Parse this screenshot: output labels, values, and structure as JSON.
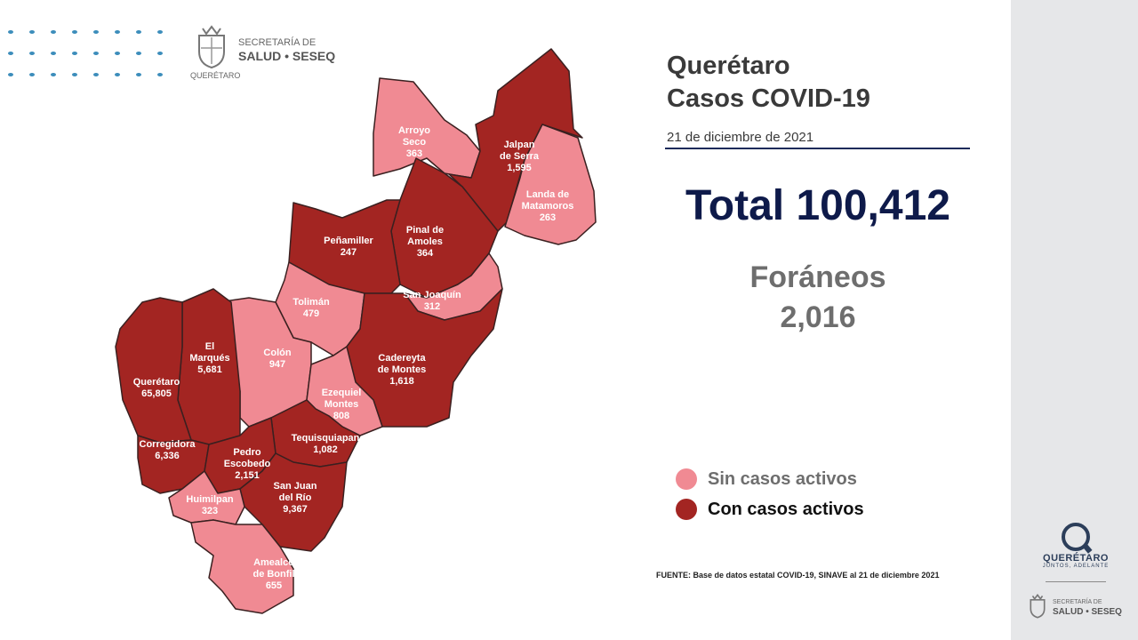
{
  "header": {
    "agency_line1": "SECRETARÍA DE",
    "agency_line2": "SALUD • SESEQ",
    "agency_line3": "QUERÉTARO"
  },
  "title": {
    "line1": "Querétaro",
    "line2": "Casos COVID-19"
  },
  "date": "21 de diciembre de 2021",
  "total_label": "Total 100,412",
  "foraneos": {
    "label": "Foráneos",
    "value": "2,016"
  },
  "legend": [
    {
      "label": "Sin casos activos",
      "color": "#f08a93",
      "text_color": "#6e6e6e"
    },
    {
      "label": "Con casos activos",
      "color": "#a32522",
      "text_color": "#111111"
    }
  ],
  "source": "FUENTE: Base de datos estatal  COVID-19,  SINAVE  al 21 de diciembre 2021",
  "colors": {
    "active": "#a32522",
    "inactive": "#f08a93",
    "border": "#3a2020"
  },
  "municipalities": [
    {
      "name": "Arroyo Seco",
      "lines": [
        "Arroyo",
        "Seco"
      ],
      "cases": "363",
      "status": "inactive"
    },
    {
      "name": "Jalpan de Serra",
      "lines": [
        "Jalpan",
        "de Serra"
      ],
      "cases": "1,595",
      "status": "active"
    },
    {
      "name": "Landa de Matamoros",
      "lines": [
        "Landa de",
        "Matamoros"
      ],
      "cases": "263",
      "status": "inactive"
    },
    {
      "name": "Pinal de Amoles",
      "lines": [
        "Pinal de",
        "Amoles"
      ],
      "cases": "364",
      "status": "active"
    },
    {
      "name": "Peñamiller",
      "lines": [
        "Peñamiller"
      ],
      "cases": "247",
      "status": "active"
    },
    {
      "name": "San Joaquín",
      "lines": [
        "San Joaquín"
      ],
      "cases": "312",
      "status": "inactive"
    },
    {
      "name": "Tolimán",
      "lines": [
        "Tolimán"
      ],
      "cases": "479",
      "status": "inactive"
    },
    {
      "name": "Cadereyta de Montes",
      "lines": [
        "Cadereyta",
        "de Montes"
      ],
      "cases": "1,618",
      "status": "active"
    },
    {
      "name": "Colón",
      "lines": [
        "Colón"
      ],
      "cases": "947",
      "status": "inactive"
    },
    {
      "name": "El Marqués",
      "lines": [
        "El",
        "Marqués"
      ],
      "cases": "5,681",
      "status": "active"
    },
    {
      "name": "Querétaro",
      "lines": [
        "Querétaro"
      ],
      "cases": "65,805",
      "status": "active"
    },
    {
      "name": "Ezequiel Montes",
      "lines": [
        "Ezequiel",
        "Montes"
      ],
      "cases": "808",
      "status": "inactive"
    },
    {
      "name": "Tequisquiapan",
      "lines": [
        "Tequisquiapan"
      ],
      "cases": "1,082",
      "status": "active"
    },
    {
      "name": "Corregidora",
      "lines": [
        "Corregidora"
      ],
      "cases": "6,336",
      "status": "active"
    },
    {
      "name": "Pedro Escobedo",
      "lines": [
        "Pedro",
        "Escobedo"
      ],
      "cases": "2,151",
      "status": "active"
    },
    {
      "name": "San Juan del Río",
      "lines": [
        "San Juan",
        "del Río"
      ],
      "cases": "9,367",
      "status": "active"
    },
    {
      "name": "Huimilpan",
      "lines": [
        "Huimilpan"
      ],
      "cases": "323",
      "status": "inactive"
    },
    {
      "name": "Amealco de Bonfil",
      "lines": [
        "Amealco",
        "de Bonfil"
      ],
      "cases": "655",
      "status": "inactive"
    }
  ],
  "footer": {
    "brand": "QUERÉTARO",
    "tagline": "JUNTOS, ADELANTE",
    "agency_line1": "SECRETARÍA DE",
    "agency_line2": "SALUD • SESEQ"
  }
}
